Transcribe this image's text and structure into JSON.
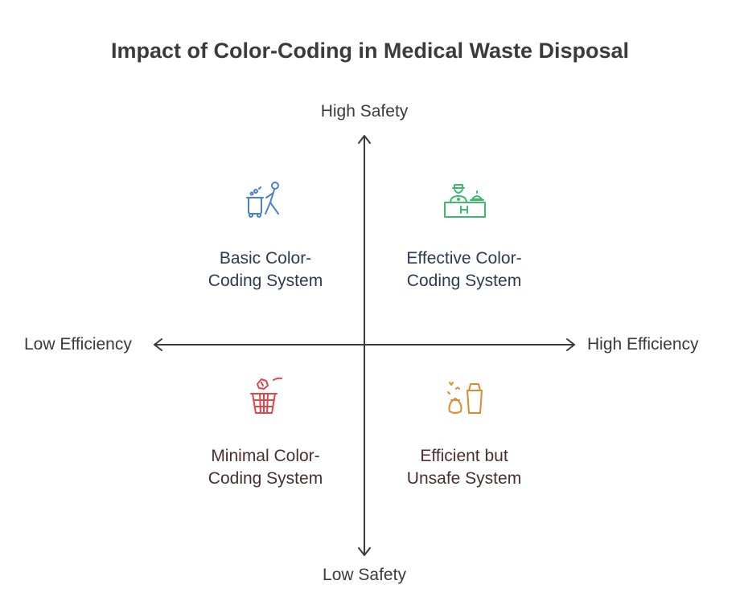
{
  "title": "Impact of Color-Coding in Medical Waste Disposal",
  "axes": {
    "top": "High Safety",
    "bottom": "Low Safety",
    "left": "Low Efficiency",
    "right": "High Efficiency"
  },
  "quadrants": {
    "top_left": {
      "line1": "Basic Color-",
      "line2": "Coding System",
      "icon": "person-with-trash-bin-icon",
      "color": "#4a7fd6"
    },
    "top_right": {
      "line1": "Effective Color-",
      "line2": "Coding System",
      "icon": "hospital-reception-icon",
      "color": "#3dbb6b"
    },
    "bottom_left": {
      "line1": "Minimal Color-",
      "line2": "Coding System",
      "icon": "waste-basket-icon",
      "color": "#e0474c"
    },
    "bottom_right": {
      "line1": "Efficient but",
      "line2": "Unsafe System",
      "icon": "waste-bag-and-bin-icon",
      "color": "#e08a2c"
    }
  }
}
